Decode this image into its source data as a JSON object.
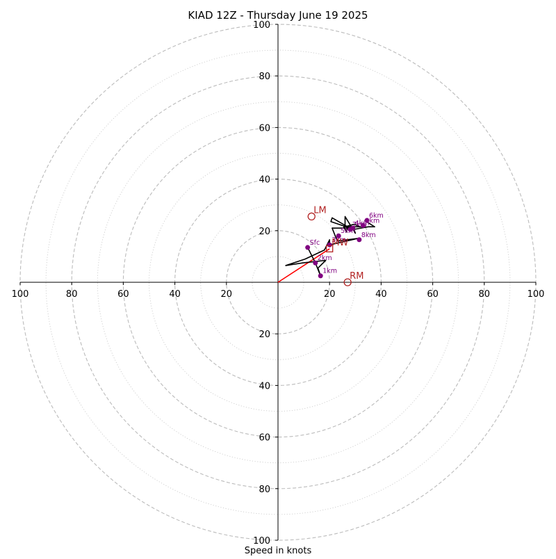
{
  "chart_data": {
    "type": "hodograph",
    "title": "KIAD 12Z - Thursday June 19 2025",
    "xlabel": "Speed in knots",
    "xlim": [
      -100,
      100
    ],
    "ylim": [
      -100,
      100
    ],
    "rings": [
      10,
      20,
      30,
      40,
      50,
      60,
      70,
      80,
      90,
      100
    ],
    "tick_labels_x": [
      "100",
      "80",
      "60",
      "40",
      "20",
      "20",
      "40",
      "60",
      "80",
      "100"
    ],
    "tick_values_x": [
      -100,
      -80,
      -60,
      -40,
      -20,
      20,
      40,
      60,
      80,
      100
    ],
    "tick_labels_y": [
      "100",
      "80",
      "60",
      "40",
      "20",
      "20",
      "40",
      "60",
      "80",
      "100"
    ],
    "tick_values_y": [
      100,
      80,
      60,
      40,
      20,
      -20,
      -40,
      -60,
      -80,
      -100
    ],
    "trace": [
      [
        11.5,
        13.5
      ],
      [
        14.5,
        7.5
      ],
      [
        16.5,
        2.5
      ],
      [
        15.5,
        5.5
      ],
      [
        18.5,
        8.5
      ],
      [
        9.5,
        7.5
      ],
      [
        3,
        6.5
      ],
      [
        10.5,
        9
      ],
      [
        18,
        12.5
      ],
      [
        20,
        16.5
      ],
      [
        20,
        14.5
      ],
      [
        31,
        17
      ],
      [
        23,
        16
      ],
      [
        22,
        18.5
      ],
      [
        21,
        21
      ],
      [
        28,
        21
      ],
      [
        20.5,
        23.5
      ],
      [
        21,
        25
      ],
      [
        27,
        21.5
      ],
      [
        26.5,
        19.5
      ],
      [
        25.5,
        21.5
      ],
      [
        32,
        21.5
      ],
      [
        29.5,
        22.5
      ],
      [
        26,
        21.5
      ],
      [
        26,
        25.5
      ],
      [
        30,
        19
      ],
      [
        29.5,
        20.5
      ],
      [
        35,
        21.5
      ],
      [
        37.5,
        21.5
      ],
      [
        33.5,
        24
      ]
    ],
    "levels": [
      {
        "label": "Sfc",
        "x": 11.5,
        "y": 13.5
      },
      {
        "label": "1km",
        "x": 16.5,
        "y": 2.5
      },
      {
        "label": "2km",
        "x": 14.5,
        "y": 7.5
      },
      {
        "label": "3km",
        "x": 20,
        "y": 14.5
      },
      {
        "label": "4km",
        "x": 29,
        "y": 21
      },
      {
        "label": "5km",
        "x": 23.5,
        "y": 18
      },
      {
        "label": "6km",
        "x": 34.5,
        "y": 24
      },
      {
        "label": "7km",
        "x": 28,
        "y": 20.5
      },
      {
        "label": "8km",
        "x": 31.5,
        "y": 16.5
      },
      {
        "label": "9km",
        "x": 33,
        "y": 22
      }
    ],
    "storm_motion": [
      {
        "label": "LM",
        "marker": "circle",
        "x": 13,
        "y": 25.5
      },
      {
        "label": "RM",
        "marker": "circle",
        "x": 27,
        "y": 0
      },
      {
        "label": "MW",
        "marker": "square",
        "x": 20,
        "y": 13
      }
    ],
    "shear_vector": {
      "from": [
        0,
        0
      ],
      "to": [
        20,
        13
      ]
    },
    "colors": {
      "trace": "#000000",
      "level_points": "#800080",
      "storm_motion": "#b22222",
      "shear_vector": "#ff0000",
      "ring_major": "#bbbbbb",
      "ring_minor": "#cccccc",
      "axis": "#000000"
    }
  }
}
